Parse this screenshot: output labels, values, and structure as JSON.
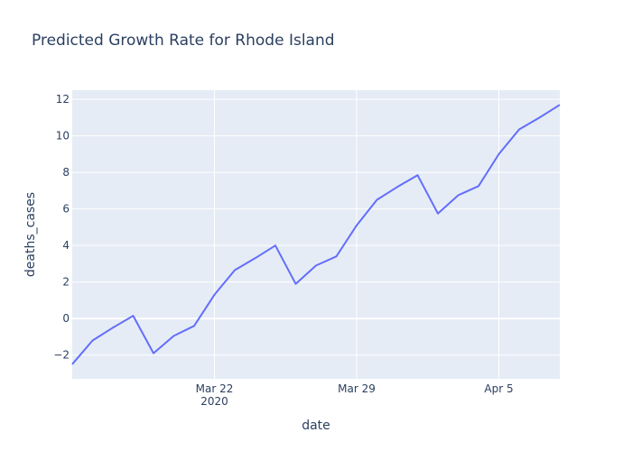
{
  "chart_data": {
    "type": "line",
    "title": "Predicted Growth Rate for Rhode Island",
    "xlabel": "date",
    "ylabel": "deaths_cases",
    "x_tick_labels": [
      {
        "date": "2020-03-22",
        "label": "Mar 22",
        "sublabel": "2020"
      },
      {
        "date": "2020-03-29",
        "label": "Mar 29",
        "sublabel": ""
      },
      {
        "date": "2020-04-05",
        "label": "Apr 5",
        "sublabel": ""
      }
    ],
    "y_ticks": [
      -2,
      0,
      2,
      4,
      6,
      8,
      10,
      12
    ],
    "xlim": [
      "2020-03-15",
      "2020-04-08"
    ],
    "ylim": [
      -3.3,
      12.5
    ],
    "grid": true,
    "colors": {
      "line": "#636efa",
      "plot_bg": "#e5ecf6",
      "grid": "#ffffff",
      "text": "#2a3f5f"
    },
    "series": [
      {
        "x": [
          "2020-03-15",
          "2020-03-16",
          "2020-03-17",
          "2020-03-18",
          "2020-03-19",
          "2020-03-20",
          "2020-03-21",
          "2020-03-22",
          "2020-03-23",
          "2020-03-24",
          "2020-03-25",
          "2020-03-26",
          "2020-03-27",
          "2020-03-28",
          "2020-03-29",
          "2020-03-30",
          "2020-03-31",
          "2020-04-01",
          "2020-04-02",
          "2020-04-03",
          "2020-04-04",
          "2020-04-05",
          "2020-04-06",
          "2020-04-07",
          "2020-04-08"
        ],
        "y": [
          -2.5,
          -1.2,
          -0.5,
          0.15,
          -1.9,
          -0.95,
          -0.4,
          1.3,
          2.65,
          3.3,
          4.0,
          1.9,
          2.9,
          3.4,
          5.1,
          6.5,
          7.2,
          7.85,
          5.75,
          6.75,
          7.25,
          9.0,
          10.35,
          11.0,
          11.7
        ]
      }
    ]
  }
}
